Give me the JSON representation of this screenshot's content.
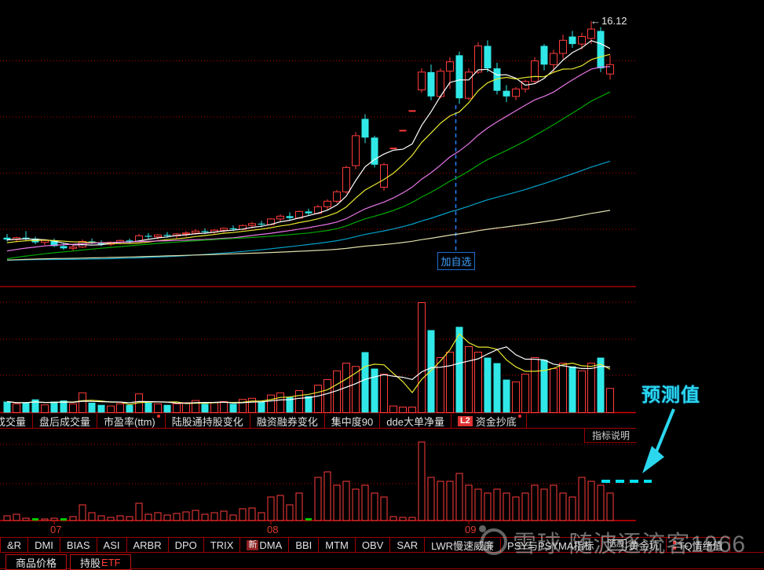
{
  "colors": {
    "candle_up": "#ff3b3b",
    "candle_down": "#30e8e8",
    "ma_white": "#ffffff",
    "ma_yellow": "#e8e830",
    "ma_magenta": "#e876e8",
    "ma_green": "#00aa00",
    "ma_cyan": "#00a0c8",
    "ma_pale": "#ddddab",
    "grid_red": "#b40000",
    "line_red": "#9e0000",
    "baseline_red": "#d40000",
    "prediction_cyan": "#00e0f0",
    "annotation_cyan": "#2bd7ef",
    "watch_blue": "#2080ff",
    "month_red": "#e03a2c"
  },
  "icons": {
    "left_arrow": "←",
    "camera_icon": "xueqiu-camera-logo",
    "red_dot": "new-indicator-dot",
    "red_colon": "hot-indicator-icon"
  },
  "annotations": {
    "price_high": "16.12",
    "add_watch": "加自选",
    "prediction": "预测值"
  },
  "panes": {
    "indicator_note": "指标说明"
  },
  "top_tabs": {
    "items": [
      {
        "label": "成交量",
        "clip": true
      },
      {
        "label": "盘后成交量"
      },
      {
        "label": "市盈率(ttm)",
        "dot": true
      },
      {
        "label": "陆股通持股变化"
      },
      {
        "label": "融资融券变化"
      },
      {
        "label": "集中度90"
      },
      {
        "label": "dde大单净量"
      },
      {
        "label": "资金抄底",
        "badge_l2": "L2",
        "dot": true
      }
    ]
  },
  "bottom_tabs": {
    "items": [
      {
        "label": "&R"
      },
      {
        "label": "DMI"
      },
      {
        "label": "BIAS"
      },
      {
        "label": "ASI"
      },
      {
        "label": "ARBR"
      },
      {
        "label": "DPO"
      },
      {
        "label": "TRIX"
      },
      {
        "label": "DMA",
        "badge_new": "新"
      },
      {
        "label": "BBI"
      },
      {
        "label": "MTM"
      },
      {
        "label": "OBV"
      },
      {
        "label": "SAR"
      },
      {
        "label": "LWR慢速威廉"
      },
      {
        "label": "PSY与PSYMA指标"
      },
      {
        "label": "黄金坑",
        "badge_box": "选股"
      },
      {
        "label": "TQ情绪值",
        "red_colon": true
      }
    ]
  },
  "footer_tabs": [
    {
      "label": "商品价格"
    },
    {
      "label": "持股",
      "accent": "ETF"
    }
  ],
  "watermark": {
    "text": "雪球 随波逐流客1966"
  },
  "chart_data": {
    "type": "candlestick+volume+indicator",
    "months": [
      {
        "label": "07",
        "index": 5
      },
      {
        "label": "08",
        "index": 28
      },
      {
        "label": "09",
        "index": 49
      }
    ],
    "price_gridlines": [
      5,
      8,
      11,
      14
    ],
    "ma_windows": {
      "white": 5,
      "yellow": 10,
      "magenta": 20,
      "green": 30,
      "cyan": 60,
      "pale": 120
    },
    "marked_candle_index": 48,
    "prediction_level": 0.5,
    "pre_closes": [
      3.8,
      3.85,
      3.9,
      3.88,
      3.92,
      3.95,
      3.9,
      3.85,
      3.8,
      3.75,
      3.7,
      3.65,
      3.6,
      3.55,
      3.5,
      3.45,
      3.4,
      3.3,
      3.2,
      3.1,
      3.0,
      2.9,
      2.8,
      2.7,
      2.62,
      2.55,
      2.5,
      2.45,
      2.42,
      2.4,
      2.38,
      2.4,
      2.42,
      2.45,
      2.5,
      2.55,
      2.6,
      2.65,
      2.72,
      2.8,
      2.88,
      2.95,
      3.05,
      3.15,
      3.25,
      3.35,
      3.45,
      3.55,
      3.65,
      3.75,
      3.85,
      3.95,
      4.05,
      4.15,
      4.22,
      4.3,
      4.35,
      4.4,
      4.45,
      4.5
    ],
    "candles": [
      [
        4.55,
        4.75,
        4.35,
        4.45,
        0.1,
        0.06,
        0
      ],
      [
        4.45,
        4.6,
        4.3,
        4.55,
        0.08,
        0.08,
        0
      ],
      [
        4.55,
        4.9,
        4.4,
        4.5,
        0.09,
        0.03,
        0
      ],
      [
        4.5,
        4.6,
        4.2,
        4.3,
        0.12,
        0.02,
        1
      ],
      [
        4.3,
        4.45,
        4.15,
        4.4,
        0.07,
        0.02,
        0
      ],
      [
        4.4,
        4.5,
        4.05,
        4.1,
        0.1,
        0.03,
        0
      ],
      [
        4.1,
        4.25,
        3.9,
        3.98,
        0.11,
        0.02,
        1
      ],
      [
        3.98,
        4.15,
        3.85,
        4.05,
        0.08,
        0.05,
        0
      ],
      [
        4.05,
        4.45,
        4.0,
        4.35,
        0.18,
        0.2,
        0
      ],
      [
        4.35,
        4.5,
        4.2,
        4.28,
        0.09,
        0.1,
        0
      ],
      [
        4.28,
        4.4,
        4.1,
        4.2,
        0.07,
        0.06,
        0
      ],
      [
        4.2,
        4.35,
        4.1,
        4.3,
        0.06,
        0.04,
        0
      ],
      [
        4.3,
        4.45,
        4.2,
        4.4,
        0.08,
        0.06,
        0
      ],
      [
        4.4,
        4.5,
        4.25,
        4.35,
        0.07,
        0.05,
        0
      ],
      [
        4.35,
        4.75,
        4.3,
        4.65,
        0.17,
        0.22,
        0
      ],
      [
        4.65,
        4.8,
        4.5,
        4.6,
        0.09,
        0.08,
        0
      ],
      [
        4.6,
        4.75,
        4.45,
        4.7,
        0.08,
        0.1,
        0
      ],
      [
        4.7,
        4.85,
        4.55,
        4.65,
        0.07,
        0.07,
        0
      ],
      [
        4.65,
        4.8,
        4.5,
        4.75,
        0.08,
        0.09,
        0
      ],
      [
        4.75,
        4.9,
        4.6,
        4.8,
        0.09,
        0.11,
        0
      ],
      [
        4.8,
        5.0,
        4.7,
        4.9,
        0.11,
        0.13,
        0
      ],
      [
        4.9,
        5.05,
        4.75,
        4.85,
        0.08,
        0.08,
        0
      ],
      [
        4.85,
        5.0,
        4.7,
        4.95,
        0.09,
        0.1,
        0
      ],
      [
        4.95,
        5.1,
        4.8,
        5.05,
        0.1,
        0.12,
        0
      ],
      [
        5.05,
        5.2,
        4.9,
        5.0,
        0.08,
        0.07,
        0
      ],
      [
        5.0,
        5.25,
        4.95,
        5.2,
        0.12,
        0.15,
        0
      ],
      [
        5.2,
        5.4,
        5.05,
        5.3,
        0.13,
        0.16,
        0
      ],
      [
        5.3,
        5.45,
        5.1,
        5.25,
        0.1,
        0.1,
        0
      ],
      [
        5.25,
        5.6,
        5.2,
        5.55,
        0.16,
        0.3,
        0
      ],
      [
        5.55,
        5.8,
        5.4,
        5.7,
        0.18,
        0.32,
        0
      ],
      [
        5.7,
        5.9,
        5.5,
        5.6,
        0.14,
        0.2,
        0
      ],
      [
        5.6,
        6.0,
        5.55,
        5.95,
        0.2,
        0.35,
        0
      ],
      [
        5.95,
        6.1,
        5.75,
        5.85,
        0.15,
        0.02,
        1
      ],
      [
        5.85,
        6.3,
        5.8,
        6.2,
        0.25,
        0.55,
        0
      ],
      [
        6.2,
        6.6,
        6.05,
        6.5,
        0.3,
        0.62,
        0
      ],
      [
        6.5,
        7.1,
        6.4,
        7.0,
        0.38,
        0.45,
        0
      ],
      [
        7.0,
        8.4,
        6.9,
        8.3,
        0.45,
        0.5,
        0
      ],
      [
        8.4,
        10.2,
        8.2,
        10.0,
        0.42,
        0.4,
        0
      ],
      [
        10.9,
        11.15,
        9.6,
        9.9,
        0.55,
        0.45,
        0
      ],
      [
        9.9,
        10.0,
        8.3,
        8.45,
        0.4,
        0.35,
        0
      ],
      [
        7.25,
        8.55,
        7.05,
        8.45,
        0.35,
        0.3,
        0
      ],
      [
        9.3,
        9.35,
        9.25,
        9.32,
        0.06,
        0.05,
        0
      ],
      [
        10.25,
        10.3,
        10.2,
        10.27,
        0.05,
        0.04,
        0
      ],
      [
        11.3,
        11.35,
        11.25,
        11.32,
        0.05,
        0.04,
        0
      ],
      [
        12.45,
        13.6,
        12.3,
        13.4,
        1.0,
        1.0,
        0
      ],
      [
        13.4,
        13.8,
        11.9,
        12.1,
        0.75,
        0.55,
        0
      ],
      [
        12.1,
        13.6,
        12.0,
        13.45,
        0.5,
        0.5,
        0
      ],
      [
        13.45,
        14.2,
        12.5,
        13.95,
        0.55,
        0.5,
        0
      ],
      [
        14.3,
        14.5,
        11.7,
        12.0,
        0.78,
        0.6,
        0
      ],
      [
        12.0,
        13.6,
        11.9,
        13.4,
        0.6,
        0.45,
        0
      ],
      [
        13.4,
        15.0,
        13.3,
        14.8,
        0.55,
        0.4,
        0
      ],
      [
        14.8,
        15.1,
        13.4,
        13.6,
        0.5,
        0.35,
        0
      ],
      [
        13.6,
        13.9,
        12.2,
        12.4,
        0.45,
        0.4,
        0
      ],
      [
        12.4,
        12.7,
        11.8,
        12.1,
        0.3,
        0.35,
        0
      ],
      [
        12.1,
        12.6,
        11.9,
        12.5,
        0.28,
        0.3,
        0
      ],
      [
        12.5,
        13.0,
        12.3,
        12.9,
        0.35,
        0.35,
        0
      ],
      [
        12.9,
        14.2,
        12.8,
        14.0,
        0.5,
        0.45,
        0
      ],
      [
        14.8,
        14.9,
        13.5,
        13.8,
        0.48,
        0.4,
        0
      ],
      [
        13.8,
        14.6,
        13.4,
        14.4,
        0.4,
        0.45,
        0
      ],
      [
        14.4,
        15.4,
        14.1,
        15.1,
        0.45,
        0.35,
        0
      ],
      [
        15.3,
        15.6,
        14.7,
        14.9,
        0.42,
        0.3,
        0
      ],
      [
        14.9,
        15.5,
        14.6,
        15.3,
        0.38,
        0.55,
        0
      ],
      [
        15.2,
        16.12,
        14.9,
        15.7,
        0.45,
        0.5,
        0
      ],
      [
        15.6,
        15.8,
        13.4,
        13.6,
        0.5,
        0.45,
        0
      ],
      [
        13.3,
        14.3,
        13.0,
        13.8,
        0.22,
        0.35,
        0
      ]
    ]
  }
}
